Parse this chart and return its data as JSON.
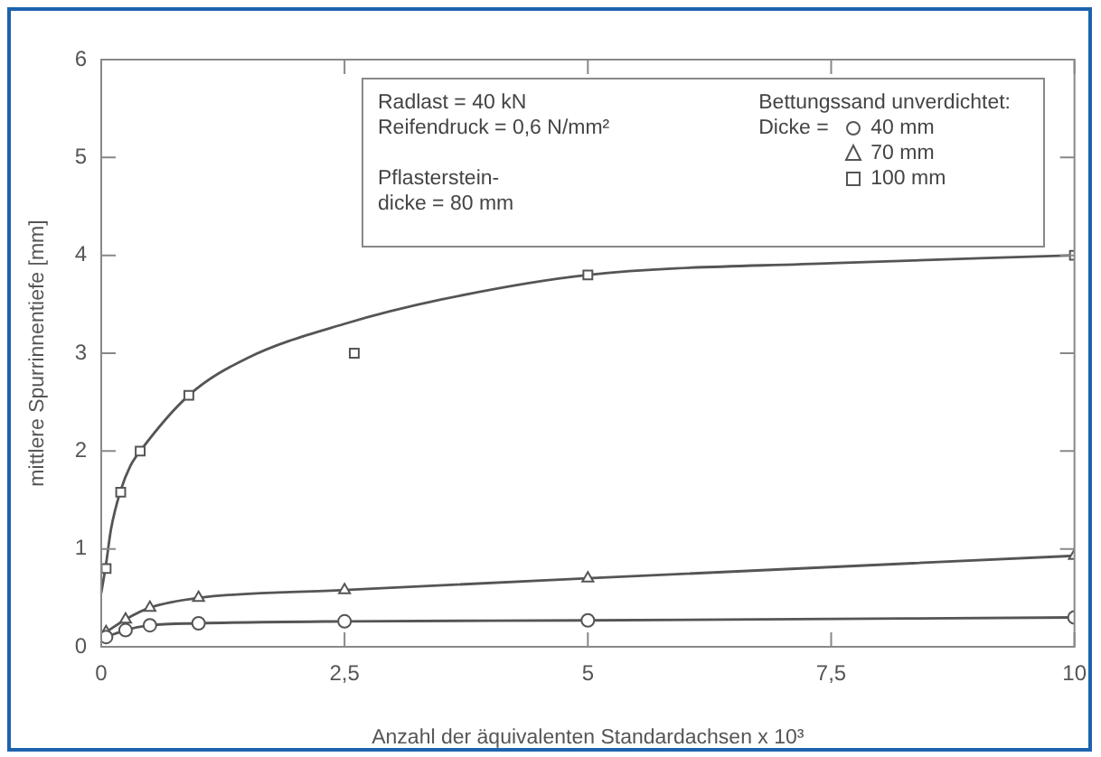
{
  "chart_data": {
    "type": "line",
    "xlabel": "Anzahl der äquivalenten Standardachsen x 10³",
    "ylabel": "mittlere Spurrinnentiefe [mm]",
    "xlim": [
      0,
      10
    ],
    "xticks": [
      0,
      {
        "value": 2.5,
        "label": "2,5"
      },
      5,
      {
        "value": 7.5,
        "label": "7,5"
      },
      10
    ],
    "ylim": [
      0,
      6
    ],
    "yticks": [
      0,
      1,
      2,
      3,
      4,
      5,
      6
    ],
    "grid": false,
    "legend": "top right",
    "legend_title": "Bettungssand unverdichtet:",
    "annotations": [
      "Radlast = 40 kN",
      "Reifendruck = 0,6 N/mm²",
      "Pflasterstein-dicke = 80 mm",
      "Dicke ="
    ],
    "series": [
      {
        "name": "40 mm",
        "color": "#555555",
        "marker": "circle",
        "x": [
          0.05,
          0.25,
          0.5,
          1,
          2.5,
          5,
          10
        ],
        "values": [
          0.1,
          0.17,
          0.22,
          0.24,
          0.26,
          0.27,
          0.3
        ]
      },
      {
        "name": "70 mm",
        "color": "#555555",
        "marker": "triangle",
        "x": [
          0.05,
          0.25,
          0.5,
          1,
          2.5,
          5,
          10
        ],
        "values": [
          0.15,
          0.28,
          0.4,
          0.5,
          0.58,
          0.7,
          0.93
        ]
      },
      {
        "name": "100 mm",
        "type": "scatter",
        "color": "#555555",
        "marker": "square",
        "x": [
          0.05,
          0.2,
          0.4,
          0.9,
          2.6,
          5,
          10
        ],
        "values": [
          0.8,
          1.58,
          2.0,
          2.57,
          3.0,
          3.8,
          4.0
        ]
      },
      {
        "type": "line",
        "color": "#555555",
        "marker": "none",
        "x": [
          0,
          0.05,
          0.1,
          0.2,
          0.3,
          0.4,
          0.9,
          1.5,
          2.5,
          3.5,
          5,
          7.5,
          10
        ],
        "values": [
          0.55,
          0.85,
          1.2,
          1.6,
          1.85,
          2.0,
          2.57,
          2.95,
          3.3,
          3.55,
          3.8,
          3.92,
          4.0
        ]
      }
    ]
  }
}
